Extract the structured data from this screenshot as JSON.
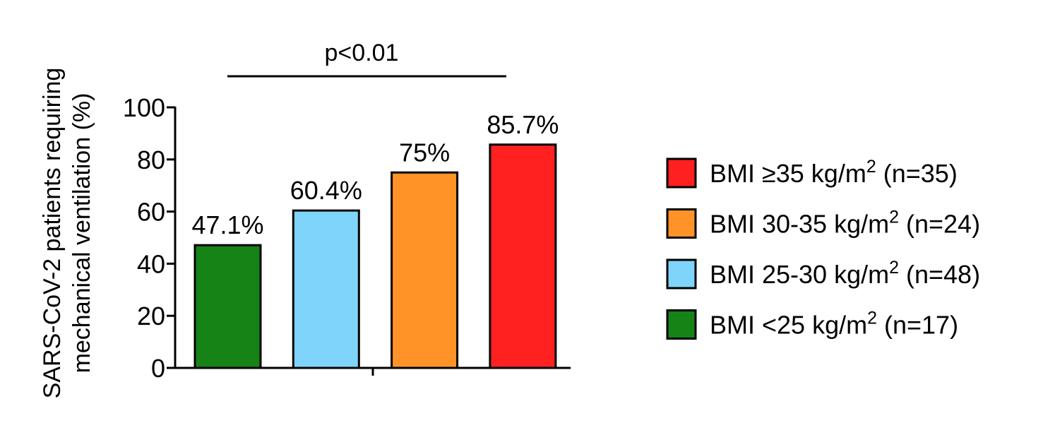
{
  "chart_data": {
    "type": "bar",
    "title": "",
    "xlabel": "",
    "ylabel_lines": [
      "SARS-CoV-2 patients requiring",
      "mechanical ventilation (%)"
    ],
    "ylim": [
      0,
      100
    ],
    "yticks": [
      0,
      20,
      40,
      60,
      80,
      100
    ],
    "grid": false,
    "legend_position": "right",
    "significance": {
      "label": "p<0.01"
    },
    "bars": [
      {
        "label": "BMI <25 kg/m2 (n=17)",
        "value": 47.1,
        "data_label": "47.1%",
        "color": "#168316"
      },
      {
        "label": "BMI 25-30 kg/m2 (n=48)",
        "value": 60.4,
        "data_label": "60.4%",
        "color": "#7fd4fb"
      },
      {
        "label": "BMI 30-35 kg/m2 (n=24)",
        "value": 75,
        "data_label": "75%",
        "color": "#ff9328"
      },
      {
        "label": "BMI ≥35 kg/m2 (n=35)",
        "value": 85.7,
        "data_label": "85.7%",
        "color": "#ff2020"
      }
    ],
    "legend": [
      {
        "prefix": "BMI ≥35 kg/m",
        "sup": "2",
        "suffix": " (n=35)",
        "color": "#ff2020"
      },
      {
        "prefix": "BMI 30-35 kg/m",
        "sup": "2",
        "suffix": " (n=24)",
        "color": "#ff9328"
      },
      {
        "prefix": "BMI 25-30 kg/m",
        "sup": "2",
        "suffix": " (n=48)",
        "color": "#7fd4fb"
      },
      {
        "prefix": "BMI <25 kg/m",
        "sup": "2",
        "suffix": " (n=17)",
        "color": "#168316"
      }
    ]
  }
}
